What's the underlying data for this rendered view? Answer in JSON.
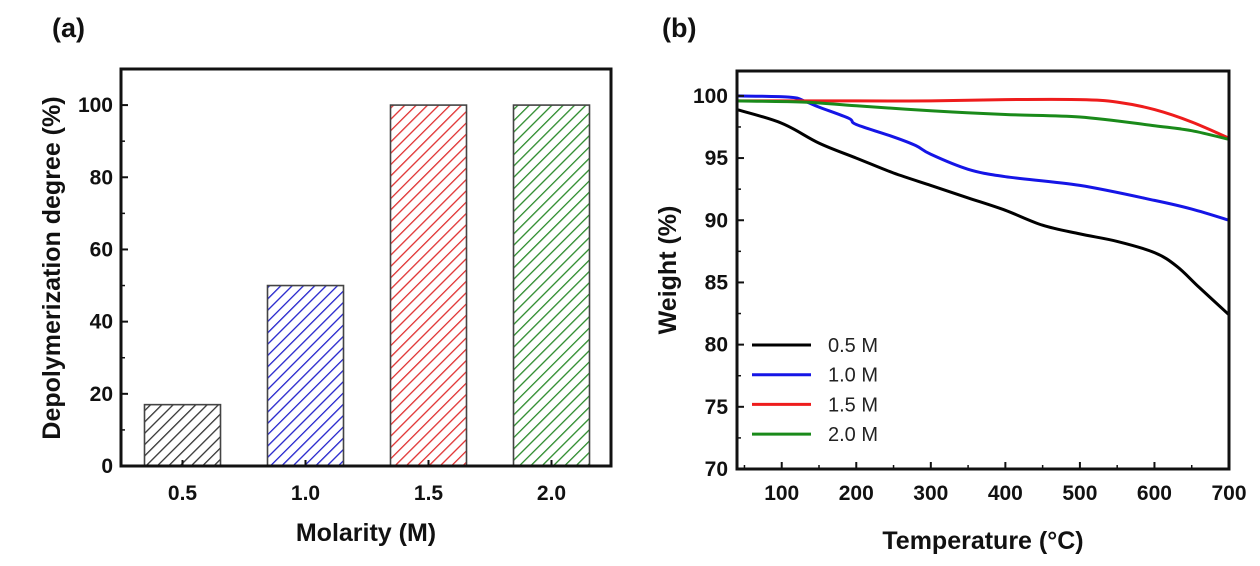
{
  "chart_data": [
    {
      "panel": "(a)",
      "type": "bar",
      "title": "",
      "xlabel": "Molarity (M)",
      "ylabel": "Depolymerization degree (%)",
      "categories": [
        "0.5",
        "1.0",
        "1.5",
        "2.0"
      ],
      "values": [
        17,
        50,
        100,
        100
      ],
      "bar_colors": [
        "#333333",
        "#2222cc",
        "#e03030",
        "#2a8a2a"
      ],
      "fill_pattern": "diagonal-hatch",
      "ylim": [
        0,
        110
      ],
      "yticks": [
        0,
        20,
        40,
        60,
        80,
        100
      ],
      "grid": false
    },
    {
      "panel": "(b)",
      "type": "line",
      "title": "",
      "xlabel": "Temperature (°C)",
      "ylabel": "Weight (%)",
      "xlim": [
        40,
        700
      ],
      "ylim": [
        70,
        102
      ],
      "xticks": [
        100,
        200,
        300,
        400,
        500,
        600,
        700
      ],
      "yticks": [
        70,
        75,
        80,
        85,
        90,
        95,
        100
      ],
      "grid": false,
      "legend_position": "bottom-left",
      "series": [
        {
          "name": "0.5 M",
          "color": "#000000",
          "x": [
            40,
            100,
            150,
            200,
            250,
            300,
            350,
            400,
            450,
            500,
            550,
            600,
            630,
            660,
            700
          ],
          "y": [
            98.9,
            97.8,
            96.2,
            95.0,
            93.8,
            92.8,
            91.8,
            90.8,
            89.6,
            88.9,
            88.3,
            87.4,
            86.3,
            84.6,
            82.4
          ]
        },
        {
          "name": "1.0 M",
          "color": "#1515e6",
          "x": [
            40,
            110,
            130,
            150,
            190,
            200,
            250,
            280,
            300,
            350,
            400,
            500,
            600,
            650,
            700
          ],
          "y": [
            100.0,
            99.9,
            99.6,
            99.1,
            98.2,
            97.7,
            96.7,
            96.0,
            95.3,
            94.1,
            93.5,
            92.8,
            91.6,
            90.9,
            90.0
          ]
        },
        {
          "name": "1.5 M",
          "color": "#ee1c1c",
          "x": [
            40,
            200,
            300,
            400,
            500,
            550,
            600,
            650,
            700
          ],
          "y": [
            99.6,
            99.6,
            99.6,
            99.7,
            99.7,
            99.5,
            98.9,
            97.9,
            96.6
          ]
        },
        {
          "name": "2.0 M",
          "color": "#1a8a1a",
          "x": [
            40,
            130,
            200,
            300,
            400,
            500,
            600,
            650,
            700
          ],
          "y": [
            99.6,
            99.5,
            99.2,
            98.8,
            98.5,
            98.3,
            97.6,
            97.2,
            96.5
          ]
        }
      ]
    }
  ]
}
